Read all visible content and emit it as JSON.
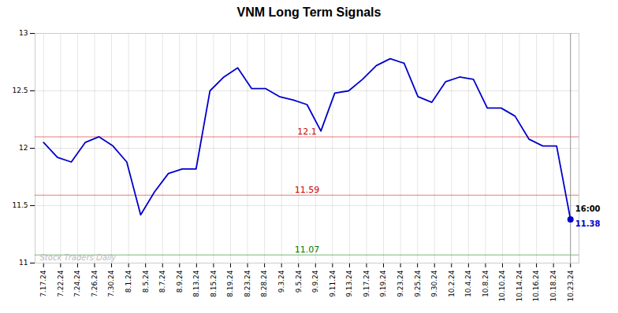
{
  "chart_data": {
    "type": "line",
    "title": "VNM Long Term Signals",
    "x": [
      0,
      0.815789,
      1.631579,
      2.447368,
      3.263158,
      4.078947,
      4.894737,
      5.710526,
      6.526316,
      7.342105,
      8.157895,
      8.973684,
      9.789474,
      10.605263,
      11.421053,
      12.236842,
      13.052632,
      13.868421,
      14.684211,
      15.5,
      16.315789,
      17.131579,
      17.947368,
      18.763158,
      19.578947,
      20.394737,
      21.210526,
      22.026316,
      22.842105,
      23.657895,
      24.473684,
      25.289474,
      26.105263,
      26.921053,
      27.736842,
      28.552632,
      29.368421,
      30.184211,
      31
    ],
    "values": [
      12.05,
      11.92,
      11.88,
      12.05,
      12.1,
      12.02,
      11.88,
      11.42,
      11.62,
      11.78,
      11.82,
      11.82,
      12.5,
      12.62,
      12.7,
      12.52,
      12.52,
      12.45,
      12.42,
      12.38,
      12.15,
      12.48,
      12.5,
      12.6,
      12.72,
      12.78,
      12.74,
      12.45,
      12.4,
      12.58,
      12.62,
      12.6,
      12.35,
      12.35,
      12.28,
      12.08,
      12.02,
      12.02,
      11.38
    ],
    "color": "#0000cc",
    "xlim": [
      -0.5,
      31.5
    ],
    "xticks": [
      {
        "value": 0,
        "label": "7.17.24"
      },
      {
        "value": 1,
        "label": "7.22.24"
      },
      {
        "value": 2,
        "label": "7.24.24"
      },
      {
        "value": 3,
        "label": "7.26.24"
      },
      {
        "value": 4,
        "label": "7.30.24"
      },
      {
        "value": 5,
        "label": "8.1.24"
      },
      {
        "value": 6,
        "label": "8.5.24"
      },
      {
        "value": 7,
        "label": "8.7.24"
      },
      {
        "value": 8,
        "label": "8.9.24"
      },
      {
        "value": 9,
        "label": "8.13.24"
      },
      {
        "value": 10,
        "label": "8.15.24"
      },
      {
        "value": 11,
        "label": "8.19.24"
      },
      {
        "value": 12,
        "label": "8.23.24"
      },
      {
        "value": 13,
        "label": "8.28.24"
      },
      {
        "value": 14,
        "label": "9.3.24"
      },
      {
        "value": 15,
        "label": "9.5.24"
      },
      {
        "value": 16,
        "label": "9.9.24"
      },
      {
        "value": 17,
        "label": "9.11.24"
      },
      {
        "value": 18,
        "label": "9.13.24"
      },
      {
        "value": 19,
        "label": "9.17.24"
      },
      {
        "value": 20,
        "label": "9.19.24"
      },
      {
        "value": 21,
        "label": "9.23.24"
      },
      {
        "value": 22,
        "label": "9.25.24"
      },
      {
        "value": 23,
        "label": "9.30.24"
      },
      {
        "value": 24,
        "label": "10.2.24"
      },
      {
        "value": 25,
        "label": "10.4.24"
      },
      {
        "value": 26,
        "label": "10.8.24"
      },
      {
        "value": 27,
        "label": "10.10.24"
      },
      {
        "value": 28,
        "label": "10.14.24"
      },
      {
        "value": 29,
        "label": "10.16.24"
      },
      {
        "value": 30,
        "label": "10.18.24"
      },
      {
        "value": 31,
        "label": "10.23.24"
      }
    ],
    "ylim": [
      11,
      13
    ],
    "yticks": [
      11,
      11.5,
      12,
      12.5,
      13
    ],
    "grid": true,
    "hlines": [
      {
        "y": 12.1,
        "label": "12.1",
        "color": "#cc0000"
      },
      {
        "y": 11.59,
        "label": "11.59",
        "color": "#cc0000"
      },
      {
        "y": 11.07,
        "label": "11.07",
        "color": "#007700"
      }
    ],
    "annotations": [
      {
        "text": "16:00",
        "color": "#000000"
      },
      {
        "text": "11.38",
        "color": "#0000cc"
      }
    ],
    "watermark": "Stock Traders Daily"
  }
}
